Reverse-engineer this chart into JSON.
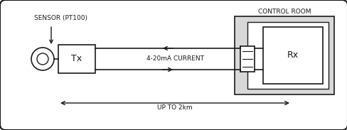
{
  "bg_color": "#e8e8e8",
  "outer_box_color": "#ffffff",
  "line_color": "#1a1a1a",
  "text_color": "#1a1a1a",
  "sensor_label": "SENSOR (PT100)",
  "tx_label": "Tx",
  "rx_label": "Rx",
  "current_label": "4-20mA CURRENT",
  "distance_label": "UP TO 2km",
  "control_room_label": "CONTROL ROOM",
  "figsize": [
    4.89,
    1.83
  ],
  "dpi": 100
}
